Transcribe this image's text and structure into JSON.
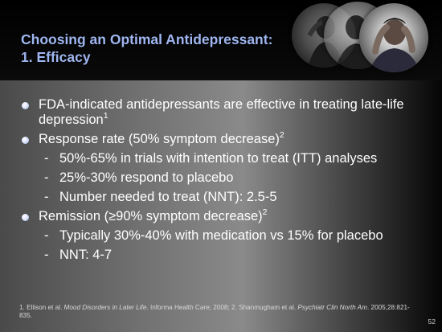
{
  "title": {
    "line1": "Choosing an Optimal Antidepressant:",
    "line2": "1. Efficacy"
  },
  "bullets": [
    {
      "text": "FDA-indicated antidepressants are effective in treating late-life depression",
      "sup": "1"
    },
    {
      "text": "Response rate (50% symptom decrease)",
      "sup": "2",
      "sub": [
        "50%-65% in trials with intention to treat (ITT) analyses",
        "25%-30% respond to placebo",
        "Number needed to treat (NNT): 2.5-5"
      ]
    },
    {
      "text": "Remission (≥90% symptom decrease)",
      "sup": "2",
      "sub": [
        "Typically 30%-40% with medication vs 15% for placebo",
        "NNT: 4-7"
      ]
    }
  ],
  "footnote": {
    "p1": "1. Ellison et al. ",
    "j1": "Mood Disorders in Later Life",
    "p2": ". Informa Health Care; 2008; 2. Shanmugham et al. ",
    "j2": "Psychiatr Clin North Am",
    "p3": ". 2005;28:821-835."
  },
  "page_number": "52",
  "decor": {
    "photos": [
      "person-photo",
      "person-photo",
      "person-holding-head-photo"
    ]
  },
  "colors": {
    "title": "#9fb6f0",
    "body_text": "#ffffff",
    "header_bg": "#000000"
  }
}
